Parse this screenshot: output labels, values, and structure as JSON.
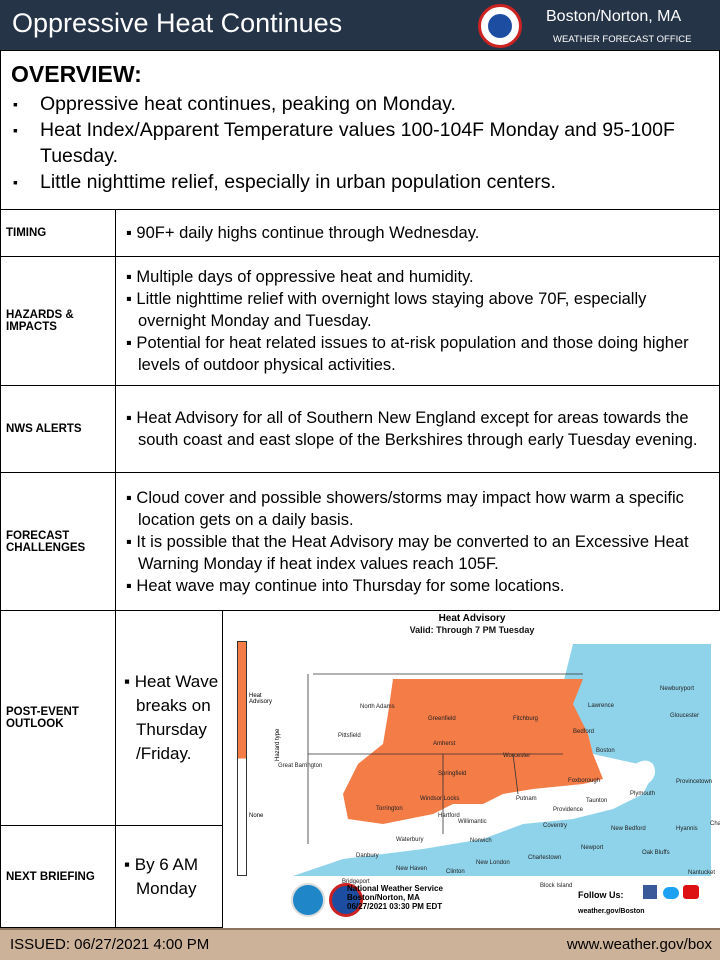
{
  "header": {
    "title": "Oppressive Heat Continues",
    "office": "Boston/Norton, MA",
    "subtitle": "WEATHER FORECAST OFFICE"
  },
  "overview": {
    "heading": "OVERVIEW:",
    "bullets": [
      "Oppressive heat continues, peaking on Monday.",
      "Heat Index/Apparent Temperature values 100-104F Monday and 95-100F Tuesday.",
      "Little nighttime relief, especially in urban population centers."
    ]
  },
  "rows": [
    {
      "label": "TIMING",
      "items": [
        "▪ 90F+ daily highs continue through Wednesday."
      ]
    },
    {
      "label": "HAZARDS & IMPACTS",
      "items": [
        "▪ Multiple days of oppressive heat and humidity.",
        "▪ Little nighttime relief with overnight lows staying above 70F, especially overnight Monday and Tuesday.",
        "▪ Potential for heat related issues to at-risk population and those doing higher levels of outdoor physical activities."
      ]
    },
    {
      "label": "NWS ALERTS",
      "items": [
        "▪ Heat Advisory for all of Southern New England except for areas towards the south coast and east slope of the Berkshires through early Tuesday evening."
      ]
    },
    {
      "label": "FORECAST CHALLENGES",
      "items": [
        "▪ Cloud cover and possible showers/storms may impact how warm a specific location gets on a daily basis.",
        "▪ It is possible that the Heat Advisory may be converted to an Excessive Heat Warning Monday if heat index values reach 105F.",
        "▪ Heat wave may continue into Thursday for some locations."
      ]
    },
    {
      "label": "POST-EVENT OUTLOOK",
      "items": [
        "▪ Heat Wave breaks on Thursday /Friday."
      ]
    },
    {
      "label": "NEXT BRIEFING",
      "items": [
        "▪ By 6 AM Monday"
      ]
    }
  ],
  "map": {
    "title": "Heat Advisory",
    "valid": "Valid: Through 7 PM Tuesday",
    "legend_title": "Hazard type",
    "legend": [
      "Heat Advisory",
      "None"
    ],
    "colors": {
      "advisory": "#f47c47",
      "ocean": "#8fd3ea"
    },
    "cities": [
      "Newburyport",
      "North Adams",
      "Lawrence",
      "Greenfield",
      "Fitchburg",
      "Gloucester",
      "Pittsfield",
      "Bedford",
      "Amherst",
      "Worcester",
      "Boston",
      "Great Barrington",
      "Springfield",
      "Foxborough",
      "Provincetown",
      "Plymouth",
      "Windsor Locks",
      "Putnam",
      "Taunton",
      "Torrington",
      "Providence",
      "Hartford",
      "Willimantic",
      "Coventry",
      "New Bedford",
      "Hyannis",
      "Chatham",
      "Norwich",
      "Waterbury",
      "Newport",
      "Danbury",
      "Oak Bluffs",
      "New London",
      "Charlestown",
      "New Haven",
      "Clinton",
      "Nantucket",
      "Bridgeport",
      "Block Island"
    ],
    "org": "National Weather Service",
    "office": "Boston/Norton, MA",
    "issued": "06/27/2021 03:30 PM EDT",
    "follow": "Follow Us:",
    "site": "weather.gov/Boston"
  },
  "footer": {
    "issued": "ISSUED: 06/27/2021 4:00 PM",
    "url": "www.weather.gov/box"
  }
}
